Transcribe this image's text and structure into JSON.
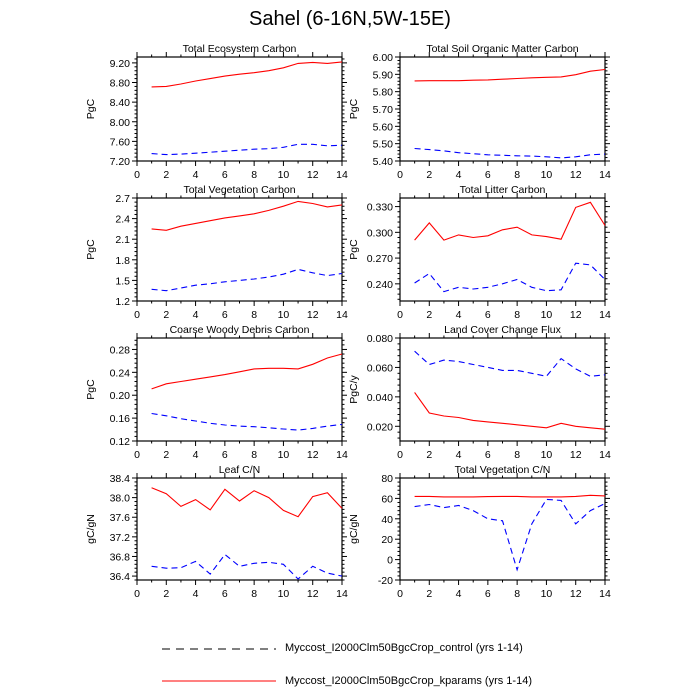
{
  "title": "Sahel (6-16N,5W-15E)",
  "legend": [
    {
      "label": "Myccost_I2000Clm50BgcCrop_control (yrs 1-14)",
      "color": "#0000ff",
      "style": "dashed"
    },
    {
      "label": "Myccost_I2000Clm50BgcCrop_kparams (yrs 1-14)",
      "color": "#ff0000",
      "style": "solid"
    }
  ],
  "chart_data": [
    {
      "type": "line",
      "title": "Total Ecosystem Carbon",
      "ylabel": "PgC",
      "xlim": [
        0,
        14
      ],
      "ylim": [
        7.2,
        9.32
      ],
      "yticks": [
        "7.20",
        "7.60",
        "8.00",
        "8.40",
        "8.80",
        "9.20"
      ],
      "xticks": [
        "0",
        "2",
        "4",
        "6",
        "8",
        "10",
        "12",
        "14"
      ],
      "x": [
        1,
        2,
        3,
        4,
        5,
        6,
        7,
        8,
        9,
        10,
        11,
        12,
        13,
        14
      ],
      "series": [
        {
          "name": "control",
          "values": [
            7.35,
            7.33,
            7.34,
            7.36,
            7.38,
            7.4,
            7.42,
            7.44,
            7.45,
            7.48,
            7.54,
            7.54,
            7.51,
            7.52
          ]
        },
        {
          "name": "kparams",
          "values": [
            8.71,
            8.72,
            8.77,
            8.83,
            8.88,
            8.93,
            8.97,
            9.0,
            9.04,
            9.1,
            9.19,
            9.21,
            9.19,
            9.22
          ]
        }
      ]
    },
    {
      "type": "line",
      "title": "Total Soil Organic Matter Carbon",
      "ylabel": "PgC",
      "xlim": [
        0,
        14
      ],
      "ylim": [
        5.4,
        6.0
      ],
      "yticks": [
        "5.40",
        "5.50",
        "5.60",
        "5.70",
        "5.80",
        "5.90",
        "6.00"
      ],
      "xticks": [
        "0",
        "2",
        "4",
        "6",
        "8",
        "10",
        "12",
        "14"
      ],
      "x": [
        1,
        2,
        3,
        4,
        5,
        6,
        7,
        8,
        9,
        10,
        11,
        12,
        13,
        14
      ],
      "series": [
        {
          "name": "control",
          "values": [
            5.472,
            5.466,
            5.458,
            5.448,
            5.442,
            5.436,
            5.433,
            5.43,
            5.428,
            5.424,
            5.418,
            5.424,
            5.436,
            5.44
          ]
        },
        {
          "name": "kparams",
          "values": [
            5.862,
            5.863,
            5.863,
            5.863,
            5.866,
            5.868,
            5.872,
            5.876,
            5.88,
            5.883,
            5.885,
            5.898,
            5.918,
            5.928
          ]
        }
      ]
    },
    {
      "type": "line",
      "title": "Total Vegetation Carbon",
      "ylabel": "PgC",
      "xlim": [
        0,
        14
      ],
      "ylim": [
        1.2,
        2.7
      ],
      "yticks": [
        "1.2",
        "1.5",
        "1.8",
        "2.1",
        "2.4",
        "2.7"
      ],
      "xticks": [
        "0",
        "2",
        "4",
        "6",
        "8",
        "10",
        "12",
        "14"
      ],
      "x": [
        1,
        2,
        3,
        4,
        5,
        6,
        7,
        8,
        9,
        10,
        11,
        12,
        13,
        14
      ],
      "series": [
        {
          "name": "control",
          "values": [
            1.37,
            1.35,
            1.39,
            1.43,
            1.45,
            1.48,
            1.5,
            1.52,
            1.55,
            1.59,
            1.66,
            1.61,
            1.57,
            1.6
          ]
        },
        {
          "name": "kparams",
          "values": [
            2.25,
            2.23,
            2.29,
            2.33,
            2.37,
            2.41,
            2.44,
            2.47,
            2.52,
            2.58,
            2.65,
            2.62,
            2.57,
            2.6
          ]
        }
      ]
    },
    {
      "type": "line",
      "title": "Total Litter Carbon",
      "ylabel": "PgC",
      "xlim": [
        0,
        14
      ],
      "ylim": [
        0.22,
        0.34
      ],
      "yticks": [
        "0.240",
        "0.270",
        "0.300",
        "0.330"
      ],
      "xticks": [
        "0",
        "2",
        "4",
        "6",
        "8",
        "10",
        "12",
        "14"
      ],
      "x": [
        1,
        2,
        3,
        4,
        5,
        6,
        7,
        8,
        9,
        10,
        11,
        12,
        13,
        14
      ],
      "series": [
        {
          "name": "control",
          "values": [
            0.241,
            0.252,
            0.231,
            0.236,
            0.234,
            0.236,
            0.24,
            0.245,
            0.236,
            0.232,
            0.233,
            0.264,
            0.262,
            0.245
          ]
        },
        {
          "name": "kparams",
          "values": [
            0.291,
            0.311,
            0.291,
            0.297,
            0.294,
            0.296,
            0.303,
            0.306,
            0.297,
            0.295,
            0.292,
            0.329,
            0.335,
            0.308
          ]
        }
      ]
    },
    {
      "type": "line",
      "title": "Coarse Woody Debris Carbon",
      "ylabel": "PgC",
      "xlim": [
        0,
        14
      ],
      "ylim": [
        0.12,
        0.3
      ],
      "yticks": [
        "0.12",
        "0.16",
        "0.20",
        "0.24",
        "0.28"
      ],
      "xticks": [
        "0",
        "2",
        "4",
        "6",
        "8",
        "10",
        "12",
        "14"
      ],
      "x": [
        1,
        2,
        3,
        4,
        5,
        6,
        7,
        8,
        9,
        10,
        11,
        12,
        13,
        14
      ],
      "series": [
        {
          "name": "control",
          "values": [
            0.168,
            0.164,
            0.159,
            0.155,
            0.151,
            0.148,
            0.146,
            0.145,
            0.143,
            0.141,
            0.139,
            0.142,
            0.146,
            0.149
          ]
        },
        {
          "name": "kparams",
          "values": [
            0.211,
            0.22,
            0.224,
            0.228,
            0.232,
            0.236,
            0.241,
            0.246,
            0.247,
            0.247,
            0.246,
            0.254,
            0.265,
            0.272
          ]
        }
      ]
    },
    {
      "type": "line",
      "title": "Land Cover Change Flux",
      "ylabel": "PgC/y",
      "xlim": [
        0,
        14
      ],
      "ylim": [
        0.01,
        0.08
      ],
      "yticks": [
        "0.020",
        "0.040",
        "0.060",
        "0.080"
      ],
      "xticks": [
        "0",
        "2",
        "4",
        "6",
        "8",
        "10",
        "12",
        "14"
      ],
      "x": [
        1,
        2,
        3,
        4,
        5,
        6,
        7,
        8,
        9,
        10,
        11,
        12,
        13,
        14
      ],
      "series": [
        {
          "name": "control",
          "values": [
            0.071,
            0.062,
            0.065,
            0.064,
            0.062,
            0.06,
            0.058,
            0.058,
            0.056,
            0.054,
            0.066,
            0.059,
            0.054,
            0.055
          ]
        },
        {
          "name": "kparams",
          "values": [
            0.043,
            0.029,
            0.027,
            0.026,
            0.024,
            0.023,
            0.022,
            0.021,
            0.02,
            0.019,
            0.022,
            0.02,
            0.019,
            0.018
          ]
        }
      ]
    },
    {
      "type": "line",
      "title": "Leaf C/N",
      "ylabel": "gC/gN",
      "xlim": [
        0,
        14
      ],
      "ylim": [
        36.32,
        38.4
      ],
      "yticks": [
        "36.4",
        "36.8",
        "37.2",
        "37.6",
        "38.0",
        "38.4"
      ],
      "xticks": [
        "0",
        "2",
        "4",
        "6",
        "8",
        "10",
        "12",
        "14"
      ],
      "x": [
        1,
        2,
        3,
        4,
        5,
        6,
        7,
        8,
        9,
        10,
        11,
        12,
        13,
        14
      ],
      "series": [
        {
          "name": "control",
          "values": [
            36.6,
            36.56,
            36.57,
            36.7,
            36.44,
            36.84,
            36.6,
            36.66,
            36.68,
            36.64,
            36.34,
            36.6,
            36.46,
            36.4
          ]
        },
        {
          "name": "kparams",
          "values": [
            38.2,
            38.08,
            37.82,
            37.96,
            37.75,
            38.17,
            37.93,
            38.14,
            38.0,
            37.74,
            37.61,
            38.02,
            38.1,
            37.78
          ]
        }
      ]
    },
    {
      "type": "line",
      "title": "Total Vegetation C/N",
      "ylabel": "gC/gN",
      "xlim": [
        0,
        14
      ],
      "ylim": [
        -20,
        80
      ],
      "yticks": [
        "-20",
        "0",
        "20",
        "40",
        "60",
        "80"
      ],
      "xticks": [
        "0",
        "2",
        "4",
        "6",
        "8",
        "10",
        "12",
        "14"
      ],
      "x": [
        1,
        2,
        3,
        4,
        5,
        6,
        7,
        8,
        9,
        10,
        11,
        12,
        13,
        14
      ],
      "series": [
        {
          "name": "control",
          "values": [
            52,
            54,
            51,
            53,
            48,
            40,
            38,
            -10,
            35,
            59,
            58,
            35,
            48,
            55
          ]
        },
        {
          "name": "kparams",
          "values": [
            62,
            62,
            61.5,
            61.5,
            61.5,
            61.8,
            62,
            62,
            61.5,
            61.5,
            61.5,
            62,
            63,
            62.5
          ]
        }
      ]
    }
  ]
}
